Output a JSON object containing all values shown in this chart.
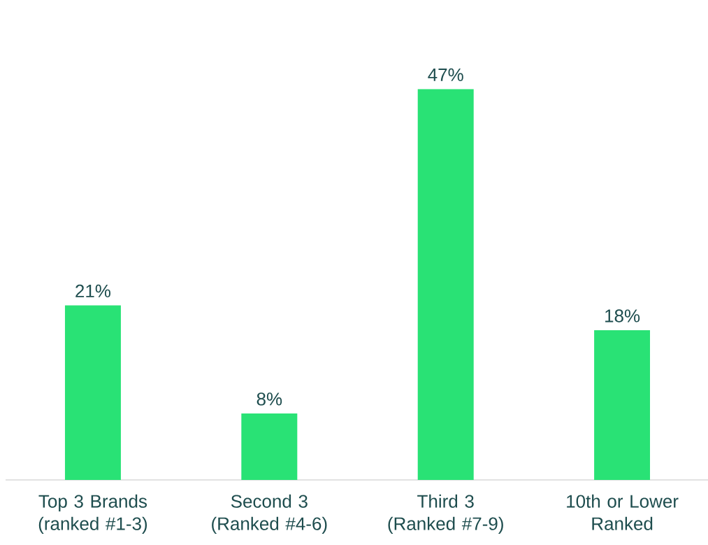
{
  "chart_data": {
    "type": "bar",
    "categories": [
      "Top 3 Brands (ranked #1-3)",
      "Second 3 (Ranked #4-6)",
      "Third 3 (Ranked #7-9)",
      "10th or Lower Ranked"
    ],
    "values": [
      21,
      8,
      47,
      18
    ],
    "value_labels": [
      "21%",
      "8%",
      "47%",
      "18%"
    ],
    "color": "#29e275"
  }
}
